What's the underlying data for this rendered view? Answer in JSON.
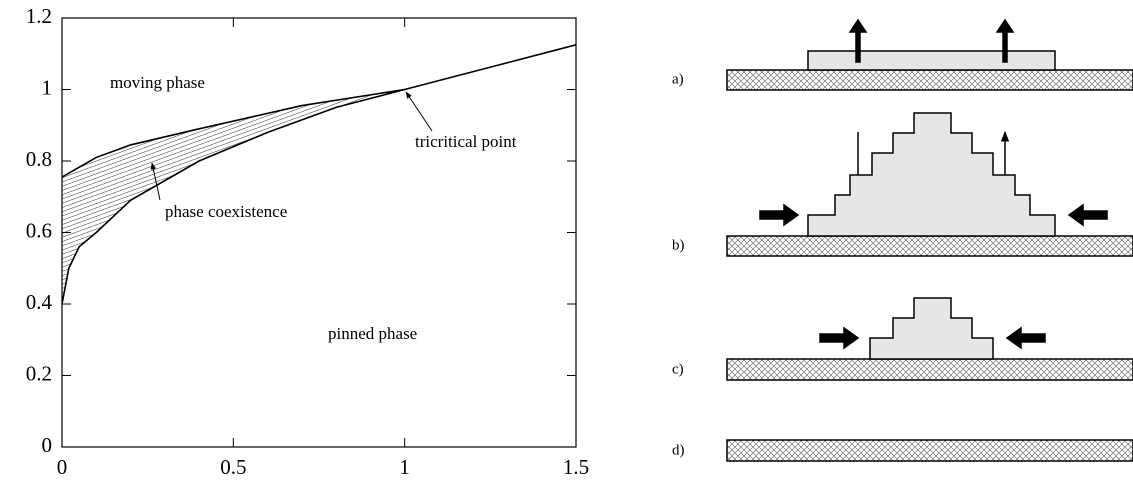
{
  "chart_data": {
    "type": "line",
    "series": [
      {
        "color": "#000000",
        "x": [
          0,
          0.1,
          0.2,
          0.4,
          0.7,
          0.9,
          1,
          1.2,
          1.5
        ],
        "values": [
          0.755,
          0.81,
          0.845,
          0.89,
          0.955,
          0.985,
          1.0,
          1.05,
          1.125
        ]
      },
      {
        "color": "#000000",
        "x": [
          0,
          0.02,
          0.05,
          0.1,
          0.2,
          0.4,
          0.6,
          0.8,
          1
        ],
        "values": [
          0.4,
          0.5,
          0.56,
          0.6,
          0.69,
          0.8,
          0.88,
          0.95,
          1.0
        ]
      }
    ],
    "annotations": [
      "moving phase",
      "tricritical point",
      "phase coexistence",
      "pinned phase"
    ],
    "xlim": [
      0,
      1.5
    ],
    "xticks": [
      0,
      0.5,
      1,
      1.5
    ],
    "ylim": [
      0,
      1.2
    ],
    "yticks": [
      0,
      0.2,
      0.4,
      0.6,
      0.8,
      1,
      1.2
    ]
  },
  "diagram": {
    "labels": [
      "a)",
      "b)",
      "c)",
      "d)"
    ]
  }
}
